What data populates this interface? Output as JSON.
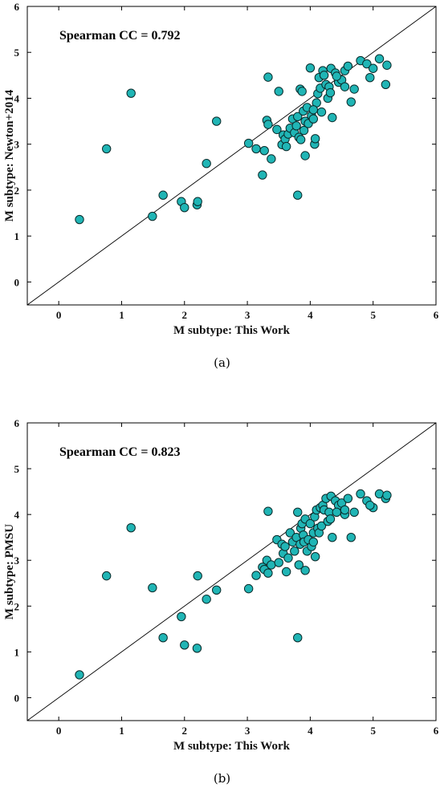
{
  "chart_data": [
    {
      "type": "scatter",
      "panel_label": "(a)",
      "annotation": "Spearman CC = 0.792",
      "xlabel": "M subtype:  This Work",
      "ylabel": "M subtype:  Newton+2014",
      "xlim": [
        -0.5,
        6
      ],
      "ylim": [
        -0.5,
        6
      ],
      "xticks": [
        "0",
        "1",
        "2",
        "3",
        "4",
        "5",
        "6"
      ],
      "yticks": [
        "0",
        "1",
        "2",
        "3",
        "4",
        "5",
        "6"
      ],
      "reference_line": "y = x",
      "marker_color": "#20b5b5",
      "x": [
        0.33,
        0.76,
        1.15,
        1.49,
        1.66,
        1.95,
        2.0,
        2.2,
        2.21,
        2.35,
        2.51,
        3.02,
        3.14,
        3.24,
        3.27,
        3.31,
        3.33,
        3.33,
        3.38,
        3.47,
        3.5,
        3.55,
        3.57,
        3.6,
        3.62,
        3.65,
        3.68,
        3.72,
        3.75,
        3.78,
        3.8,
        3.82,
        3.84,
        3.85,
        3.87,
        3.89,
        3.9,
        3.92,
        3.95,
        3.97,
        4.0,
        4.02,
        4.05,
        4.07,
        4.1,
        4.12,
        4.14,
        4.16,
        4.18,
        4.2,
        4.22,
        4.25,
        4.28,
        4.3,
        4.33,
        4.35,
        4.4,
        4.45,
        4.5,
        4.55,
        4.6,
        4.65,
        4.7,
        4.8,
        4.9,
        5.0,
        5.1,
        5.2,
        5.22,
        3.8,
        3.92,
        4.05,
        4.08,
        4.32,
        4.42,
        4.55,
        4.95
      ],
      "y": [
        1.36,
        2.9,
        4.11,
        1.43,
        1.89,
        1.75,
        1.62,
        1.68,
        1.75,
        2.58,
        3.5,
        3.02,
        2.9,
        2.33,
        2.86,
        3.52,
        3.43,
        4.46,
        2.68,
        3.32,
        4.15,
        2.99,
        3.2,
        3.11,
        2.95,
        3.22,
        3.35,
        3.55,
        3.25,
        3.4,
        3.6,
        3.15,
        4.2,
        3.1,
        4.15,
        3.72,
        3.3,
        3.5,
        3.8,
        3.45,
        4.66,
        3.62,
        3.55,
        3.0,
        3.9,
        4.1,
        4.45,
        4.22,
        3.7,
        4.6,
        4.5,
        4.3,
        4.0,
        4.25,
        4.65,
        3.58,
        4.55,
        4.35,
        4.4,
        4.6,
        4.7,
        3.92,
        4.2,
        4.82,
        4.75,
        4.65,
        4.86,
        4.3,
        4.72,
        1.89,
        2.75,
        3.75,
        3.12,
        4.12,
        4.48,
        4.25,
        4.45
      ]
    },
    {
      "type": "scatter",
      "panel_label": "(b)",
      "annotation": "Spearman CC = 0.823",
      "xlabel": "M subtype:  This Work",
      "ylabel": "M subtype:  PMSU",
      "xlim": [
        -0.5,
        6
      ],
      "ylim": [
        -0.5,
        6
      ],
      "xticks": [
        "0",
        "1",
        "2",
        "3",
        "4",
        "5",
        "6"
      ],
      "yticks": [
        "0",
        "1",
        "2",
        "3",
        "4",
        "5",
        "6"
      ],
      "reference_line": "y = x",
      "marker_color": "#20b5b5",
      "x": [
        0.33,
        0.76,
        1.15,
        1.49,
        1.66,
        1.95,
        2.0,
        2.2,
        2.21,
        2.35,
        2.51,
        3.02,
        3.14,
        3.24,
        3.27,
        3.31,
        3.33,
        3.33,
        3.38,
        3.47,
        3.5,
        3.55,
        3.57,
        3.6,
        3.62,
        3.65,
        3.68,
        3.72,
        3.75,
        3.78,
        3.8,
        3.82,
        3.84,
        3.85,
        3.87,
        3.89,
        3.9,
        3.92,
        3.95,
        3.97,
        4.0,
        4.02,
        4.05,
        4.07,
        4.1,
        4.12,
        4.14,
        4.16,
        4.18,
        4.2,
        4.22,
        4.25,
        4.28,
        4.3,
        4.33,
        4.35,
        4.4,
        4.45,
        4.5,
        4.55,
        4.6,
        4.65,
        4.7,
        4.8,
        4.9,
        5.0,
        5.1,
        5.2,
        5.22,
        3.8,
        3.92,
        4.05,
        4.08,
        4.32,
        4.42,
        4.55,
        4.95
      ],
      "y": [
        0.5,
        2.66,
        3.71,
        2.4,
        1.31,
        1.77,
        1.15,
        1.08,
        2.66,
        2.15,
        2.35,
        2.38,
        2.67,
        2.85,
        2.8,
        3.0,
        2.72,
        4.07,
        2.9,
        3.45,
        2.95,
        3.35,
        3.15,
        3.3,
        2.75,
        3.05,
        3.6,
        3.4,
        3.2,
        3.5,
        4.05,
        2.9,
        3.35,
        3.7,
        3.8,
        3.55,
        3.4,
        3.9,
        3.2,
        3.45,
        3.8,
        3.3,
        3.6,
        3.95,
        4.1,
        3.7,
        3.6,
        4.15,
        3.75,
        4.2,
        4.1,
        4.35,
        3.85,
        4.05,
        4.4,
        3.5,
        4.3,
        4.2,
        4.25,
        4.0,
        4.35,
        3.5,
        4.05,
        4.45,
        4.3,
        4.15,
        4.45,
        4.35,
        4.42,
        1.31,
        2.78,
        3.4,
        3.08,
        3.9,
        4.05,
        4.1,
        4.2
      ]
    }
  ]
}
